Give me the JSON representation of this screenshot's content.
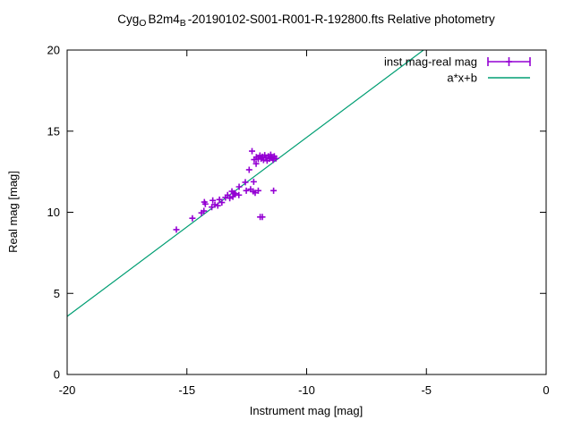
{
  "title": {
    "plain": "CygO B2m4B -20190102-S001-R001-R-192800.fts Relative photometry",
    "parts": [
      {
        "text": "Cyg"
      },
      {
        "sub": "O"
      },
      {
        "text": "B2m4"
      },
      {
        "sub": "B"
      },
      {
        "text": "-20190102-S001-R001-R-192800.fts Relative photometry"
      }
    ]
  },
  "chart_data": {
    "type": "scatter",
    "title": "CygO B2m4B -20190102-S001-R001-R-192800.fts Relative photometry",
    "xlabel": "Instrument mag [mag]",
    "ylabel": "Real mag [mag]",
    "xlim": [
      -20,
      0
    ],
    "ylim": [
      0,
      20
    ],
    "x_ticks": [
      -20,
      -15,
      -10,
      -5,
      0
    ],
    "y_ticks": [
      0,
      5,
      10,
      15,
      20
    ],
    "grid": false,
    "legend_position": "top-right-inside",
    "background": "#ffffff",
    "border_color": "#000000",
    "series": [
      {
        "name": "inst mag-real mag",
        "type": "scatter",
        "marker": "plus-xerrorbar",
        "color": "#9400d3",
        "points": [
          [
            -15.44,
            8.93
          ],
          [
            -14.77,
            9.63
          ],
          [
            -14.39,
            9.96
          ],
          [
            -14.29,
            10.08
          ],
          [
            -14.27,
            10.63
          ],
          [
            -14.23,
            10.51
          ],
          [
            -13.96,
            10.32
          ],
          [
            -13.92,
            10.73
          ],
          [
            -13.83,
            10.47
          ],
          [
            -13.71,
            10.41
          ],
          [
            -13.64,
            10.78
          ],
          [
            -13.54,
            10.6
          ],
          [
            -13.39,
            10.91
          ],
          [
            -13.3,
            11.06
          ],
          [
            -13.21,
            10.87
          ],
          [
            -13.12,
            11.29
          ],
          [
            -13.08,
            10.96
          ],
          [
            -13.04,
            11.18
          ],
          [
            -12.98,
            11.15
          ],
          [
            -12.83,
            11.06
          ],
          [
            -12.82,
            11.57
          ],
          [
            -12.56,
            11.85
          ],
          [
            -12.52,
            11.33
          ],
          [
            -12.4,
            12.62
          ],
          [
            -12.34,
            11.42
          ],
          [
            -12.28,
            13.77
          ],
          [
            -12.23,
            11.29
          ],
          [
            -12.21,
            11.88
          ],
          [
            -12.19,
            13.25
          ],
          [
            -12.15,
            11.2
          ],
          [
            -12.11,
            12.99
          ],
          [
            -12.1,
            13.4
          ],
          [
            -12.02,
            13.28
          ],
          [
            -12.02,
            11.33
          ],
          [
            -11.95,
            13.5
          ],
          [
            -11.94,
            9.71
          ],
          [
            -11.9,
            13.3
          ],
          [
            -11.85,
            13.42
          ],
          [
            -11.85,
            9.71
          ],
          [
            -11.8,
            13.22
          ],
          [
            -11.75,
            13.52
          ],
          [
            -11.7,
            13.35
          ],
          [
            -11.65,
            13.18
          ],
          [
            -11.6,
            13.45
          ],
          [
            -11.55,
            13.3
          ],
          [
            -11.5,
            13.55
          ],
          [
            -11.45,
            13.35
          ],
          [
            -11.4,
            13.22
          ],
          [
            -11.38,
            11.33
          ],
          [
            -11.35,
            13.45
          ],
          [
            -11.28,
            13.32
          ]
        ]
      },
      {
        "name": "a*x+b",
        "type": "line",
        "color": "#009e73",
        "line_from": [
          -20,
          3.58
        ],
        "line_to": [
          -5.12,
          20
        ]
      }
    ]
  }
}
